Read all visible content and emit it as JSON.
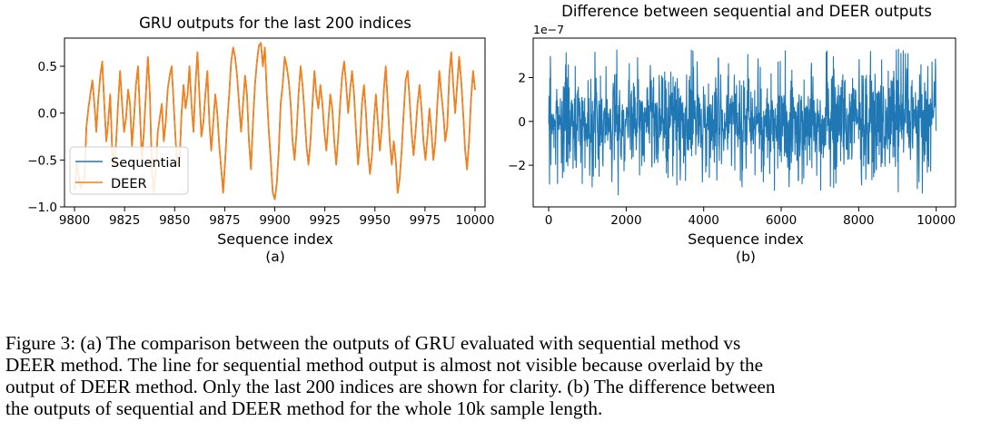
{
  "chart_data": [
    {
      "type": "line",
      "title": "GRU outputs for the last 200 indices",
      "xlabel": "Sequence index",
      "ylabel": "",
      "sublabel": "(a)",
      "xlim": [
        9795,
        10005
      ],
      "ylim": [
        -1.0,
        0.8
      ],
      "xticks": [
        "9800",
        "9825",
        "9850",
        "9875",
        "9900",
        "9925",
        "9950",
        "9975",
        "10000"
      ],
      "yticks": [
        "0.5",
        "0.0",
        "−0.5",
        "−1.0"
      ],
      "legend": {
        "placement": "lower-left",
        "entries": [
          "Sequential",
          "DEER"
        ]
      },
      "grid": false,
      "x_start": 9800,
      "x_end": 10000,
      "series": [
        {
          "name": "Sequential",
          "color": "#1f77b4",
          "values": [
            -0.82,
            -0.55,
            -0.65,
            -0.8,
            -0.75,
            -0.7,
            -0.15,
            0.05,
            0.2,
            0.35,
            0.1,
            -0.2,
            0.15,
            0.4,
            0.55,
            0.1,
            -0.3,
            -0.1,
            0.2,
            -0.4,
            -0.6,
            -0.3,
            0.1,
            0.45,
            0.1,
            -0.2,
            -0.05,
            0.25,
            0.1,
            -0.35,
            -0.05,
            0.3,
            0.5,
            0.0,
            -0.5,
            -0.2,
            0.2,
            0.6,
            0.2,
            -0.6,
            -0.85,
            -0.6,
            -0.2,
            -0.05,
            0.1,
            -0.3,
            -0.1,
            0.25,
            0.4,
            0.5,
            0.1,
            -0.3,
            -0.55,
            -0.5,
            0.0,
            0.3,
            0.05,
            0.2,
            0.5,
            0.1,
            -0.2,
            0.3,
            0.65,
            0.2,
            -0.25,
            -0.1,
            0.2,
            0.45,
            -0.1,
            -0.4,
            -0.1,
            0.2,
            0.0,
            -0.35,
            -0.6,
            -0.85,
            -0.5,
            -0.1,
            0.2,
            0.55,
            0.7,
            0.6,
            0.4,
            0.1,
            -0.2,
            0.1,
            0.4,
            0.2,
            -0.3,
            -0.6,
            -0.1,
            0.3,
            0.55,
            0.72,
            0.75,
            0.5,
            0.7,
            0.2,
            -0.2,
            -0.5,
            -0.85,
            -0.92,
            -0.75,
            -0.4,
            0.1,
            0.3,
            0.6,
            0.5,
            0.35,
            0.1,
            -0.3,
            -0.5,
            -0.2,
            0.2,
            0.5,
            0.3,
            0.0,
            -0.35,
            -0.55,
            -0.3,
            0.1,
            0.45,
            0.2,
            0.05,
            0.3,
            0.1,
            -0.2,
            -0.4,
            -0.1,
            0.2,
            0.05,
            -0.3,
            -0.55,
            -0.25,
            0.1,
            0.4,
            0.55,
            0.3,
            0.0,
            0.25,
            0.45,
            0.2,
            -0.2,
            -0.55,
            -0.3,
            0.1,
            0.3,
            0.0,
            -0.4,
            -0.65,
            -0.45,
            -0.1,
            0.2,
            -0.1,
            -0.4,
            -0.15,
            0.25,
            0.5,
            0.1,
            -0.3,
            -0.55,
            -0.3,
            -0.5,
            -0.85,
            -0.7,
            -0.4,
            0.0,
            0.35,
            0.45,
            0.15,
            -0.2,
            -0.45,
            -0.2,
            0.1,
            0.3,
            0.05,
            -0.3,
            -0.5,
            -0.25,
            0.05,
            -0.2,
            -0.5,
            -0.3,
            0.1,
            0.45,
            0.2,
            0.0,
            -0.3,
            -0.15,
            0.4,
            0.65,
            0.3,
            0.0,
            0.3,
            0.6,
            0.35,
            0.0,
            -0.4,
            -0.6,
            -0.3,
            0.15,
            0.45,
            0.25
          ]
        },
        {
          "name": "DEER",
          "color": "#ff7f0e",
          "values": [
            -0.82,
            -0.55,
            -0.65,
            -0.8,
            -0.75,
            -0.7,
            -0.15,
            0.05,
            0.2,
            0.35,
            0.1,
            -0.2,
            0.15,
            0.4,
            0.55,
            0.1,
            -0.3,
            -0.1,
            0.2,
            -0.4,
            -0.6,
            -0.3,
            0.1,
            0.45,
            0.1,
            -0.2,
            -0.05,
            0.25,
            0.1,
            -0.35,
            -0.05,
            0.3,
            0.5,
            0.0,
            -0.5,
            -0.2,
            0.2,
            0.6,
            0.2,
            -0.6,
            -0.85,
            -0.6,
            -0.2,
            -0.05,
            0.1,
            -0.3,
            -0.1,
            0.25,
            0.4,
            0.5,
            0.1,
            -0.3,
            -0.55,
            -0.5,
            0.0,
            0.3,
            0.05,
            0.2,
            0.5,
            0.1,
            -0.2,
            0.3,
            0.65,
            0.2,
            -0.25,
            -0.1,
            0.2,
            0.45,
            -0.1,
            -0.4,
            -0.1,
            0.2,
            0.0,
            -0.35,
            -0.6,
            -0.85,
            -0.5,
            -0.1,
            0.2,
            0.55,
            0.7,
            0.6,
            0.4,
            0.1,
            -0.2,
            0.1,
            0.4,
            0.2,
            -0.3,
            -0.6,
            -0.1,
            0.3,
            0.55,
            0.72,
            0.75,
            0.5,
            0.7,
            0.2,
            -0.2,
            -0.5,
            -0.85,
            -0.92,
            -0.75,
            -0.4,
            0.1,
            0.3,
            0.6,
            0.5,
            0.35,
            0.1,
            -0.3,
            -0.5,
            -0.2,
            0.2,
            0.5,
            0.3,
            0.0,
            -0.35,
            -0.55,
            -0.3,
            0.1,
            0.45,
            0.2,
            0.05,
            0.3,
            0.1,
            -0.2,
            -0.4,
            -0.1,
            0.2,
            0.05,
            -0.3,
            -0.55,
            -0.25,
            0.1,
            0.4,
            0.55,
            0.3,
            0.0,
            0.25,
            0.45,
            0.2,
            -0.2,
            -0.55,
            -0.3,
            0.1,
            0.3,
            0.0,
            -0.4,
            -0.65,
            -0.45,
            -0.1,
            0.2,
            -0.1,
            -0.4,
            -0.15,
            0.25,
            0.5,
            0.1,
            -0.3,
            -0.55,
            -0.3,
            -0.5,
            -0.85,
            -0.7,
            -0.4,
            0.0,
            0.35,
            0.45,
            0.15,
            -0.2,
            -0.45,
            -0.2,
            0.1,
            0.3,
            0.05,
            -0.3,
            -0.5,
            -0.25,
            0.05,
            -0.2,
            -0.5,
            -0.3,
            0.1,
            0.45,
            0.2,
            0.0,
            -0.3,
            -0.15,
            0.4,
            0.65,
            0.3,
            0.0,
            0.3,
            0.6,
            0.35,
            0.0,
            -0.4,
            -0.6,
            -0.3,
            0.15,
            0.45,
            0.25
          ]
        }
      ]
    },
    {
      "type": "line",
      "title": "Difference between sequential and DEER outputs",
      "xlabel": "Sequence index",
      "ylabel": "",
      "sublabel": "(b)",
      "offset_text": "1e−7",
      "xlim": [
        -400,
        10500
      ],
      "ylim": [
        -3.9,
        3.8
      ],
      "xticks": [
        "0",
        "2000",
        "4000",
        "6000",
        "8000",
        "10000"
      ],
      "yticks": [
        "2",
        "0",
        "−2"
      ],
      "grid": false,
      "x_range": [
        0,
        10000
      ],
      "noise_band": {
        "typical_abs": 1.2,
        "max": 3.6,
        "min": -3.5
      },
      "series": [
        {
          "color": "#1f77b4"
        }
      ]
    }
  ],
  "caption": {
    "lines": [
      "Figure 3:  (a) The comparison between the outputs of GRU evaluated with sequential method vs",
      "DEER method. The line for sequential method output is almost not visible because overlaid by the",
      "output of DEER method. Only the last 200 indices are shown for clarity. (b) The difference between",
      "the outputs of sequential and DEER method for the whole 10k sample length."
    ]
  }
}
